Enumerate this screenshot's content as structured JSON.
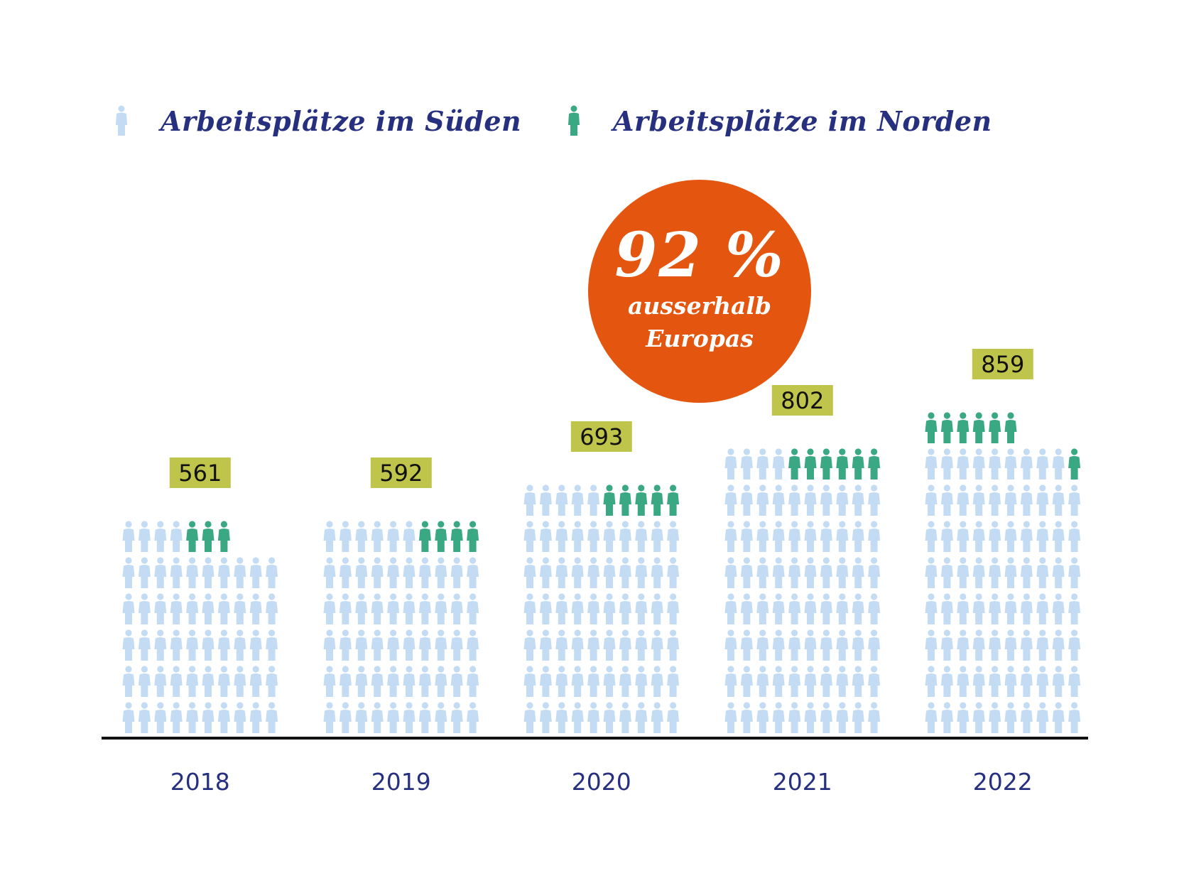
{
  "legend": {
    "south_label": "Arbeitsplätze im Süden",
    "north_label": "Arbeitsplätze im Norden",
    "south_icon": "person-icon",
    "north_icon": "person-icon"
  },
  "callout": {
    "value": "92 %",
    "line1": "ausserhalb",
    "line2": "Europas"
  },
  "colors": {
    "south": "#c3dcf4",
    "north": "#3aa882",
    "label_bg": "#bfc44a",
    "callout": "#e4560f",
    "text": "#26307f",
    "axis": "#111111"
  },
  "chart_data": {
    "type": "pictogram-bar",
    "title": "",
    "xlabel": "",
    "ylabel": "",
    "units_per_icon": 10,
    "icons_per_row": 10,
    "categories": [
      "2018",
      "2019",
      "2020",
      "2021",
      "2022"
    ],
    "totals": [
      561,
      592,
      693,
      802,
      859
    ],
    "series": [
      {
        "name": "Arbeitsplätze im Süden",
        "icon_counts": [
          54,
          56,
          65,
          74,
          79
        ]
      },
      {
        "name": "Arbeitsplätze im Norden",
        "icon_counts": [
          3,
          4,
          5,
          6,
          7
        ]
      }
    ],
    "annotation": "92 % ausserhalb Europas",
    "legend_position": "top"
  }
}
